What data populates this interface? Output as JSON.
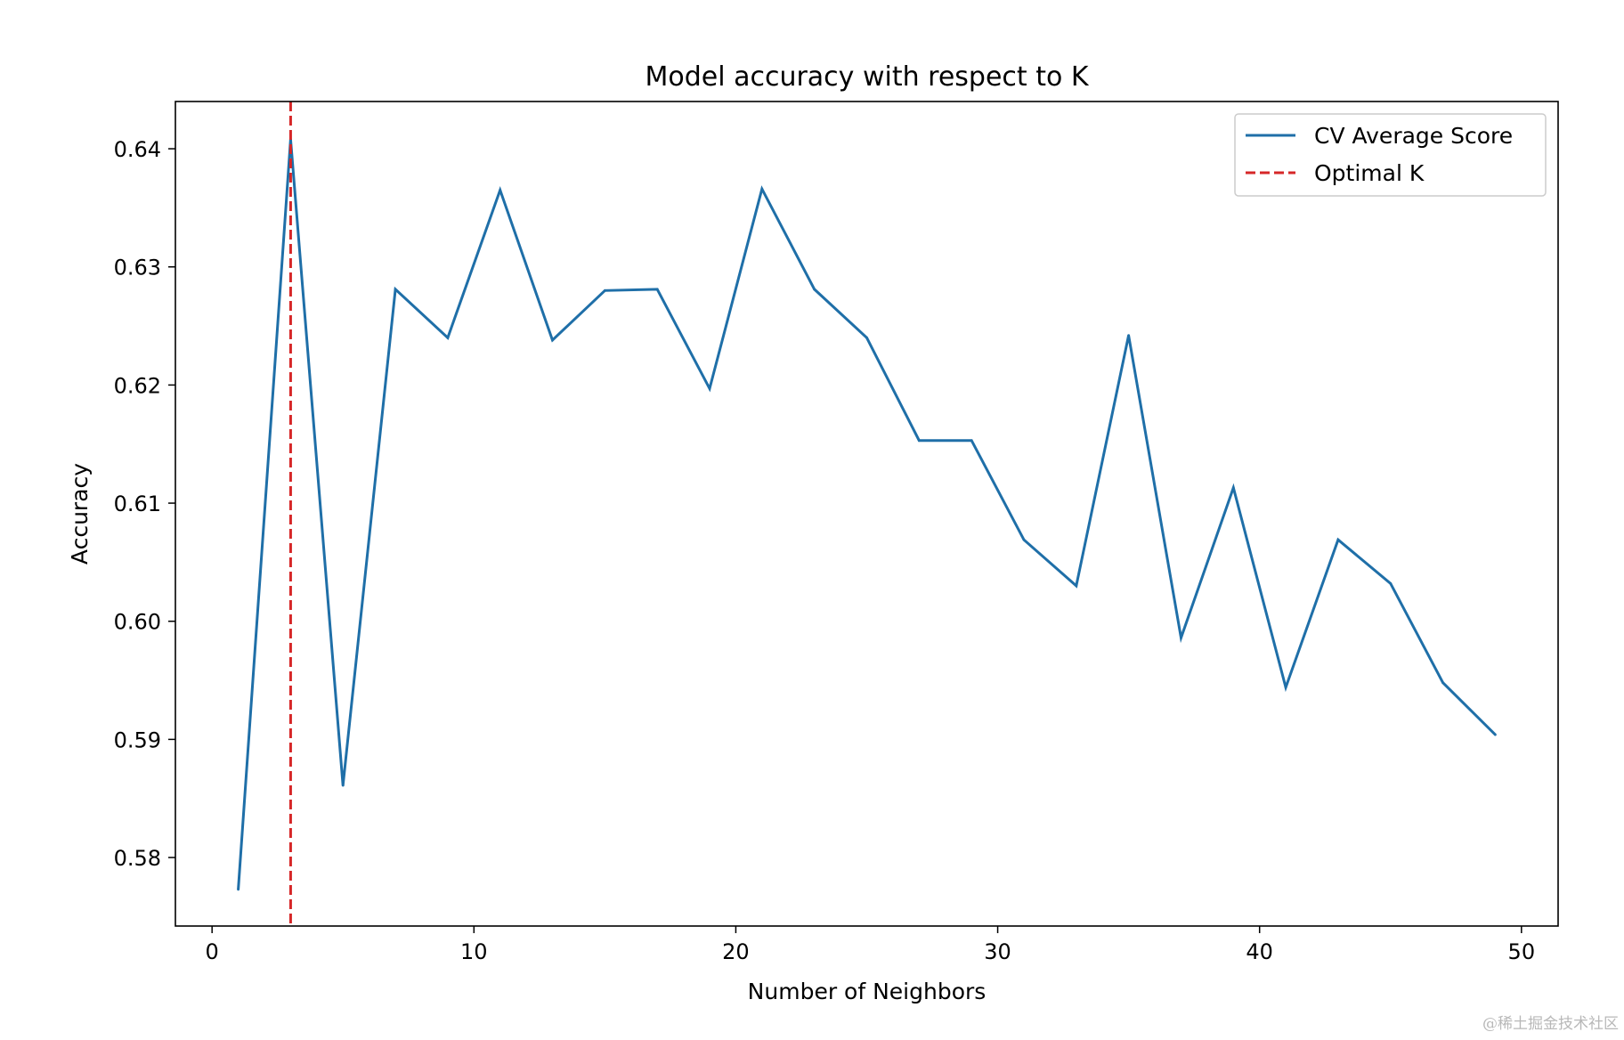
{
  "chart_data": {
    "type": "line",
    "title": "Model accuracy with respect to K",
    "xlabel": "Number of Neighbors",
    "ylabel": "Accuracy",
    "xlim": [
      -1.4,
      51.4
    ],
    "ylim": [
      0.5742,
      0.644
    ],
    "x_ticks": [
      0,
      10,
      20,
      30,
      40,
      50
    ],
    "x_tick_labels": [
      "0",
      "10",
      "20",
      "30",
      "40",
      "50"
    ],
    "y_ticks": [
      0.58,
      0.59,
      0.6,
      0.61,
      0.62,
      0.63,
      0.64
    ],
    "y_tick_labels": [
      "0.58",
      "0.59",
      "0.60",
      "0.61",
      "0.62",
      "0.63",
      "0.64"
    ],
    "grid": false,
    "legend_position": "top-right",
    "series": [
      {
        "name": "CV Average Score",
        "color": "#1f6fa8",
        "style": "solid",
        "x": [
          1,
          3,
          5,
          7,
          9,
          11,
          13,
          15,
          17,
          19,
          21,
          23,
          25,
          27,
          29,
          31,
          33,
          35,
          37,
          39,
          41,
          43,
          45,
          47,
          49
        ],
        "y": [
          0.5773,
          0.6408,
          0.5861,
          0.6281,
          0.624,
          0.6365,
          0.6238,
          0.628,
          0.6281,
          0.6197,
          0.6366,
          0.6281,
          0.624,
          0.6153,
          0.6153,
          0.6069,
          0.603,
          0.6242,
          0.5986,
          0.6113,
          0.5944,
          0.6069,
          0.6032,
          0.5948,
          0.5904
        ]
      }
    ],
    "vlines": [
      {
        "name": "Optimal K",
        "x": 3,
        "color": "#d62728",
        "style": "dashed"
      }
    ]
  },
  "watermark": "@稀土掘金技术社区"
}
